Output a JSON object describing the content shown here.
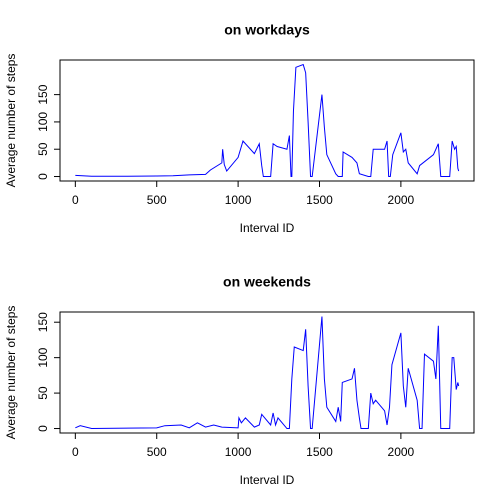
{
  "chart_data": [
    {
      "type": "line",
      "title": "on workdays",
      "x_label": "Interval ID",
      "y_label": "Average number of steps",
      "xlim": [
        -94.2,
        2449.2
      ],
      "ylim": [
        -8.2,
        213.4
      ],
      "xticks": [
        0,
        500,
        1000,
        1500,
        2000
      ],
      "yticks": [
        0,
        50,
        100,
        150
      ],
      "series": [
        {
          "name": "workdays",
          "color": "#0000ff",
          "x": [
            0,
            100,
            300,
            500,
            600,
            700,
            800,
            830,
            900,
            905,
            915,
            930,
            1000,
            1030,
            1100,
            1130,
            1145,
            1155,
            1200,
            1215,
            1240,
            1300,
            1315,
            1325,
            1330,
            1340,
            1355,
            1400,
            1415,
            1430,
            1445,
            1455,
            1515,
            1530,
            1545,
            1600,
            1615,
            1640,
            1645,
            1700,
            1730,
            1745,
            1800,
            1815,
            1830,
            1900,
            1915,
            1925,
            1935,
            1950,
            2000,
            2015,
            2030,
            2045,
            2100,
            2115,
            2200,
            2230,
            2245,
            2300,
            2315,
            2330,
            2340,
            2350,
            2355
          ],
          "values": [
            2,
            0.5,
            0.5,
            1,
            1.5,
            3,
            4,
            12,
            25,
            50,
            22,
            10,
            35,
            65,
            42,
            60,
            20,
            0,
            0,
            60,
            55,
            50,
            75,
            0,
            0,
            120,
            200,
            205,
            190,
            100,
            0,
            0,
            150,
            90,
            40,
            5,
            0,
            0,
            45,
            35,
            25,
            5,
            0,
            0,
            50,
            50,
            65,
            0,
            0,
            40,
            80,
            45,
            50,
            25,
            5,
            20,
            40,
            60,
            0,
            0,
            65,
            50,
            55,
            15,
            10
          ]
        }
      ]
    },
    {
      "type": "line",
      "title": "on weekends",
      "x_label": "Interval ID",
      "y_label": "Average number of steps",
      "xlim": [
        -94.2,
        2449.2
      ],
      "ylim": [
        -6.3,
        164.4
      ],
      "xticks": [
        0,
        500,
        1000,
        1500,
        2000
      ],
      "yticks": [
        0,
        50,
        100,
        150
      ],
      "series": [
        {
          "name": "weekends",
          "color": "#0000ff",
          "x": [
            0,
            30,
            100,
            500,
            550,
            650,
            700,
            750,
            800,
            850,
            900,
            1000,
            1005,
            1020,
            1045,
            1100,
            1130,
            1145,
            1200,
            1215,
            1230,
            1245,
            1300,
            1315,
            1330,
            1345,
            1400,
            1415,
            1430,
            1445,
            1455,
            1515,
            1530,
            1545,
            1600,
            1615,
            1630,
            1640,
            1700,
            1715,
            1730,
            1745,
            1755,
            1800,
            1815,
            1830,
            1845,
            1900,
            1915,
            1930,
            1945,
            2000,
            2015,
            2030,
            2045,
            2100,
            2115,
            2130,
            2145,
            2200,
            2215,
            2230,
            2245,
            2300,
            2315,
            2325,
            2340,
            2350,
            2355
          ],
          "values": [
            1,
            4,
            0,
            1,
            4,
            5,
            1,
            8,
            2,
            5,
            2,
            1,
            15,
            8,
            15,
            2,
            5,
            20,
            5,
            22,
            5,
            15,
            0,
            0,
            70,
            115,
            110,
            140,
            60,
            0,
            0,
            158,
            70,
            30,
            10,
            30,
            10,
            65,
            70,
            85,
            40,
            15,
            0,
            0,
            50,
            35,
            40,
            25,
            5,
            30,
            90,
            135,
            60,
            30,
            85,
            40,
            0,
            0,
            105,
            95,
            70,
            145,
            0,
            0,
            100,
            100,
            55,
            65,
            60
          ]
        }
      ]
    }
  ]
}
